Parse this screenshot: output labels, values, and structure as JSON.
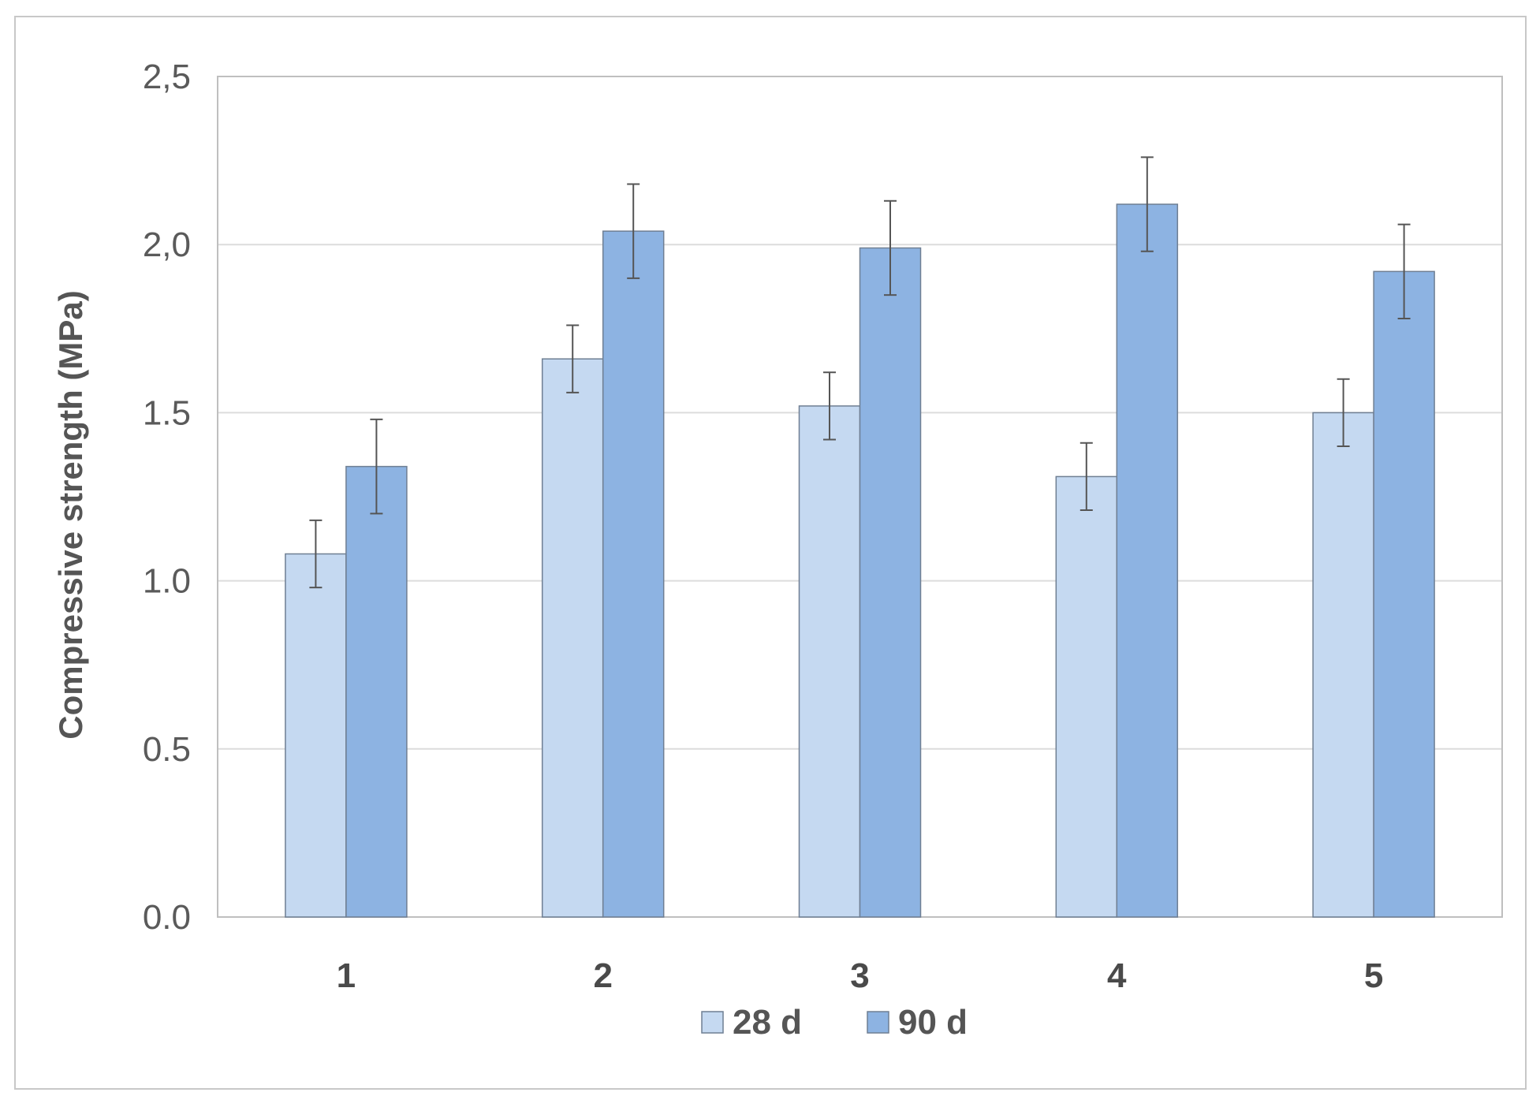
{
  "chart_data": {
    "type": "bar",
    "title": "",
    "xlabel": "",
    "ylabel": "Compressive strength (MPa)",
    "categories": [
      "1",
      "2",
      "3",
      "4",
      "5"
    ],
    "series": [
      {
        "name": "28 d",
        "color": "#c5d9f1",
        "values": [
          1.08,
          1.66,
          1.52,
          1.31,
          1.5
        ],
        "errors": [
          0.1,
          0.1,
          0.1,
          0.1,
          0.1
        ]
      },
      {
        "name": "90 d",
        "color": "#8db3e2",
        "values": [
          1.34,
          2.04,
          1.99,
          2.12,
          1.92
        ],
        "errors": [
          0.14,
          0.14,
          0.14,
          0.14,
          0.14
        ]
      }
    ],
    "ylim": [
      0,
      2.5
    ],
    "yticks": [
      "0.0",
      "0.5",
      "1.0",
      "1.5",
      "2,0",
      "2,5"
    ],
    "grid": true,
    "legend_position": "bottom"
  }
}
